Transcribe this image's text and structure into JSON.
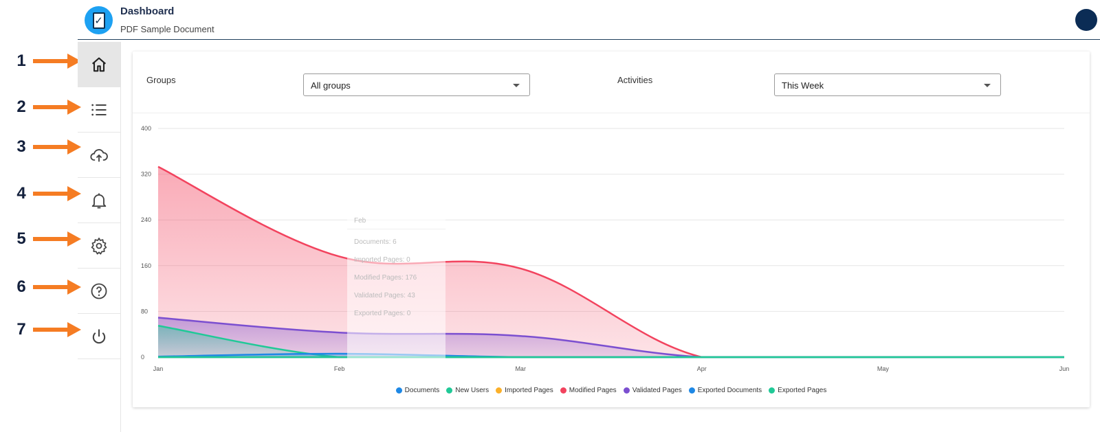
{
  "header": {
    "title": "Dashboard",
    "subtitle": "PDF Sample Document",
    "logo_glyph": "✓"
  },
  "callouts": [
    "1",
    "2",
    "3",
    "4",
    "5",
    "6",
    "7"
  ],
  "sidebar": {
    "items": [
      {
        "icon": "home-icon",
        "active": true
      },
      {
        "icon": "list-icon",
        "active": false
      },
      {
        "icon": "cloud-upload-icon",
        "active": false
      },
      {
        "icon": "bell-icon",
        "active": false
      },
      {
        "icon": "gear-icon",
        "active": false
      },
      {
        "icon": "help-icon",
        "active": false
      },
      {
        "icon": "power-icon",
        "active": false
      }
    ]
  },
  "filters": {
    "groups_label": "Groups",
    "groups_value": "All groups",
    "activities_label": "Activities",
    "activities_value": "This Week"
  },
  "tooltip": {
    "title": "Feb",
    "rows": [
      {
        "label": "Documents",
        "value": "6"
      },
      {
        "label": "Imported Pages",
        "value": "0"
      },
      {
        "label": "Modified Pages",
        "value": "176"
      },
      {
        "label": "Validated Pages",
        "value": "43"
      },
      {
        "label": "Exported Pages",
        "value": "0"
      }
    ]
  },
  "colors": {
    "accent": "#1da1f2",
    "arrow": "#f57c23",
    "avatar": "#0b2c55"
  },
  "chart_data": {
    "type": "area",
    "categories": [
      "Jan",
      "Feb",
      "Mar",
      "Apr",
      "May",
      "Jun"
    ],
    "ylim": [
      0,
      400
    ],
    "yticks": [
      0,
      80,
      160,
      240,
      320,
      400
    ],
    "grid": true,
    "legend_position": "bottom",
    "series": [
      {
        "name": "Documents",
        "color": "#1e88e5",
        "values": [
          1,
          6,
          0,
          0,
          0,
          0
        ]
      },
      {
        "name": "New Users",
        "color": "#20c997",
        "values": [
          55,
          0,
          0,
          0,
          0,
          0
        ]
      },
      {
        "name": "Imported Pages",
        "color": "#fbb02a",
        "values": [
          0,
          0,
          0,
          0,
          0,
          0
        ]
      },
      {
        "name": "Modified Pages",
        "color": "#f2435e",
        "values": [
          333,
          176,
          155,
          0,
          0,
          0
        ]
      },
      {
        "name": "Validated Pages",
        "color": "#7b4fd0",
        "values": [
          69,
          43,
          37,
          0,
          0,
          0
        ]
      },
      {
        "name": "Exported Documents",
        "color": "#1e88e5",
        "values": [
          0,
          0,
          0,
          0,
          0,
          0
        ]
      },
      {
        "name": "Exported Pages",
        "color": "#20c997",
        "values": [
          0,
          0,
          0,
          0,
          0,
          0
        ]
      }
    ]
  }
}
